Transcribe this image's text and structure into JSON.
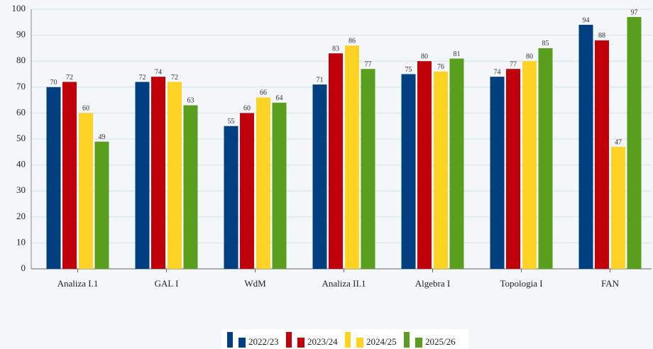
{
  "chart_data": {
    "type": "bar",
    "categories": [
      "Analiza I.1",
      "GAL I",
      "WdM",
      "Analiza II.1",
      "Algebra I",
      "Topologia I",
      "FAN"
    ],
    "series": [
      {
        "name": "2022/23",
        "color": "#003f80",
        "values": [
          70,
          72,
          55,
          71,
          75,
          74,
          94
        ]
      },
      {
        "name": "2023/24",
        "color": "#c0000b",
        "values": [
          72,
          74,
          60,
          83,
          80,
          77,
          88
        ]
      },
      {
        "name": "2024/25",
        "color": "#ffd324",
        "values": [
          60,
          72,
          66,
          86,
          76,
          80,
          47
        ]
      },
      {
        "name": "2025/26",
        "color": "#5a9e1e",
        "values": [
          49,
          63,
          64,
          77,
          81,
          85,
          97
        ]
      }
    ],
    "ylim": [
      0,
      100
    ],
    "yticks": [
      0,
      10,
      20,
      30,
      40,
      50,
      60,
      70,
      80,
      90,
      100
    ],
    "grid": true,
    "legend": "bottom"
  }
}
